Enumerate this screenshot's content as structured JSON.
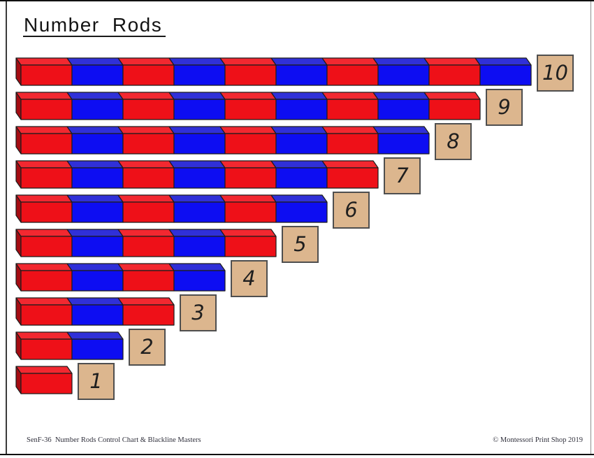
{
  "page": {
    "title": "Number Rods",
    "footer_left": "SenF-36  Number Rods Control Chart & Blackline Masters",
    "footer_right": "© Montessori Print Shop 2019"
  },
  "colors": {
    "red": "#ee1018",
    "red_top": "#f22830",
    "red_side": "#a40c12",
    "blue": "#0d0df2",
    "blue_top": "#3030d8",
    "blue_side": "#0a0aa8",
    "outline": "#1c1c1c",
    "tile_bg": "#dcb68e",
    "tile_border": "#4f4f4f"
  },
  "rods": [
    {
      "number": 10,
      "label": "10",
      "segments": [
        "red",
        "blue",
        "red",
        "blue",
        "red",
        "blue",
        "red",
        "blue",
        "red",
        "blue"
      ]
    },
    {
      "number": 9,
      "label": "9",
      "segments": [
        "red",
        "blue",
        "red",
        "blue",
        "red",
        "blue",
        "red",
        "blue",
        "red"
      ]
    },
    {
      "number": 8,
      "label": "8",
      "segments": [
        "red",
        "blue",
        "red",
        "blue",
        "red",
        "blue",
        "red",
        "blue"
      ]
    },
    {
      "number": 7,
      "label": "7",
      "segments": [
        "red",
        "blue",
        "red",
        "blue",
        "red",
        "blue",
        "red"
      ]
    },
    {
      "number": 6,
      "label": "6",
      "segments": [
        "red",
        "blue",
        "red",
        "blue",
        "red",
        "blue"
      ]
    },
    {
      "number": 5,
      "label": "5",
      "segments": [
        "red",
        "blue",
        "red",
        "blue",
        "red"
      ]
    },
    {
      "number": 4,
      "label": "4",
      "segments": [
        "red",
        "blue",
        "red",
        "blue"
      ]
    },
    {
      "number": 3,
      "label": "3",
      "segments": [
        "red",
        "blue",
        "red"
      ]
    },
    {
      "number": 2,
      "label": "2",
      "segments": [
        "red",
        "blue"
      ]
    },
    {
      "number": 1,
      "label": "1",
      "segments": [
        "red"
      ]
    }
  ]
}
